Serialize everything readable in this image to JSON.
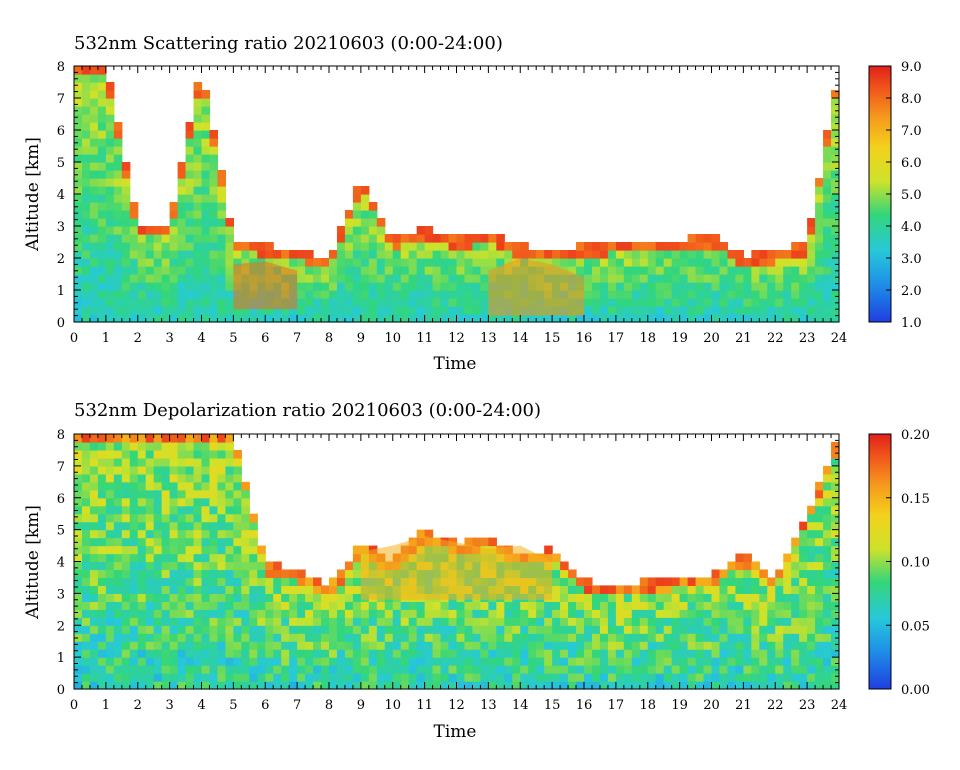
{
  "chart_data": [
    {
      "type": "heatmap",
      "title": "532nm Scattering ratio  20210603 (0:00-24:00)",
      "xlabel": "Time",
      "ylabel": "Altitude [km]",
      "xlim": [
        0,
        24
      ],
      "ylim": [
        0,
        8
      ],
      "x_ticks": [
        "0",
        "1",
        "2",
        "3",
        "4",
        "5",
        "6",
        "7",
        "8",
        "9",
        "10",
        "11",
        "12",
        "13",
        "14",
        "15",
        "16",
        "17",
        "18",
        "19",
        "20",
        "21",
        "22",
        "23",
        "24"
      ],
      "y_ticks": [
        "0",
        "1",
        "2",
        "3",
        "4",
        "5",
        "6",
        "7",
        "8"
      ],
      "colorbar": {
        "range": [
          1.0,
          9.0
        ],
        "ticks": [
          "1.0",
          "2.0",
          "3.0",
          "4.0",
          "5.0",
          "6.0",
          "7.0",
          "8.0",
          "9.0"
        ]
      },
      "features": [
        {
          "kind": "cloud-top-boundary",
          "x": [
            0,
            1,
            2,
            3,
            4,
            5,
            6,
            7,
            8,
            9,
            10,
            11,
            12,
            13,
            14,
            15,
            16,
            17,
            18,
            19,
            20,
            21,
            22,
            23,
            24
          ],
          "y": [
            8,
            8,
            3,
            3,
            8,
            2.6,
            2.4,
            2.3,
            2.0,
            4.5,
            2.6,
            3.0,
            2.6,
            2.8,
            2.4,
            2.2,
            2.4,
            2.5,
            2.6,
            2.6,
            2.7,
            2.1,
            2.2,
            2.5,
            8
          ]
        },
        {
          "kind": "plume",
          "x": [
            5,
            6,
            7
          ],
          "y": [
            1.8,
            1.9,
            1.6
          ],
          "level": 8.0
        },
        {
          "kind": "plume",
          "x": [
            13,
            14,
            15,
            16
          ],
          "y": [
            1.6,
            2.0,
            1.8,
            1.4
          ],
          "level": 7.5
        }
      ]
    },
    {
      "type": "heatmap",
      "title": "532nm Depolarization ratio  20210603 (0:00-24:00)",
      "xlabel": "Time",
      "ylabel": "Altitude [km]",
      "xlim": [
        0,
        24
      ],
      "ylim": [
        0,
        8
      ],
      "x_ticks": [
        "0",
        "1",
        "2",
        "3",
        "4",
        "5",
        "6",
        "7",
        "8",
        "9",
        "10",
        "11",
        "12",
        "13",
        "14",
        "15",
        "16",
        "17",
        "18",
        "19",
        "20",
        "21",
        "22",
        "23",
        "24"
      ],
      "y_ticks": [
        "0",
        "1",
        "2",
        "3",
        "4",
        "5",
        "6",
        "7",
        "8"
      ],
      "colorbar": {
        "range": [
          0.0,
          0.2
        ],
        "ticks": [
          "0.00",
          "0.05",
          "0.10",
          "0.15",
          "0.20"
        ]
      },
      "features": [
        {
          "kind": "signal-top-boundary",
          "x": [
            0,
            1,
            2,
            3,
            4,
            5,
            6,
            7,
            8,
            9,
            10,
            11,
            12,
            13,
            14,
            15,
            16,
            17,
            18,
            19,
            20,
            21,
            22,
            23,
            24
          ],
          "y": [
            8,
            8,
            8,
            8,
            8,
            8,
            4,
            3.7,
            3.2,
            4.6,
            4.0,
            5.0,
            4.6,
            4.8,
            4.2,
            4.4,
            3.4,
            3.3,
            3.4,
            3.5,
            3.6,
            4.3,
            3.5,
            5.5,
            8
          ]
        },
        {
          "kind": "high-depol-layer",
          "x": [
            9,
            10,
            11,
            12,
            13,
            14,
            15
          ],
          "y": [
            4.3,
            4.5,
            4.8,
            4.6,
            4.4,
            4.5,
            4.0
          ],
          "level": 0.15
        }
      ]
    }
  ]
}
